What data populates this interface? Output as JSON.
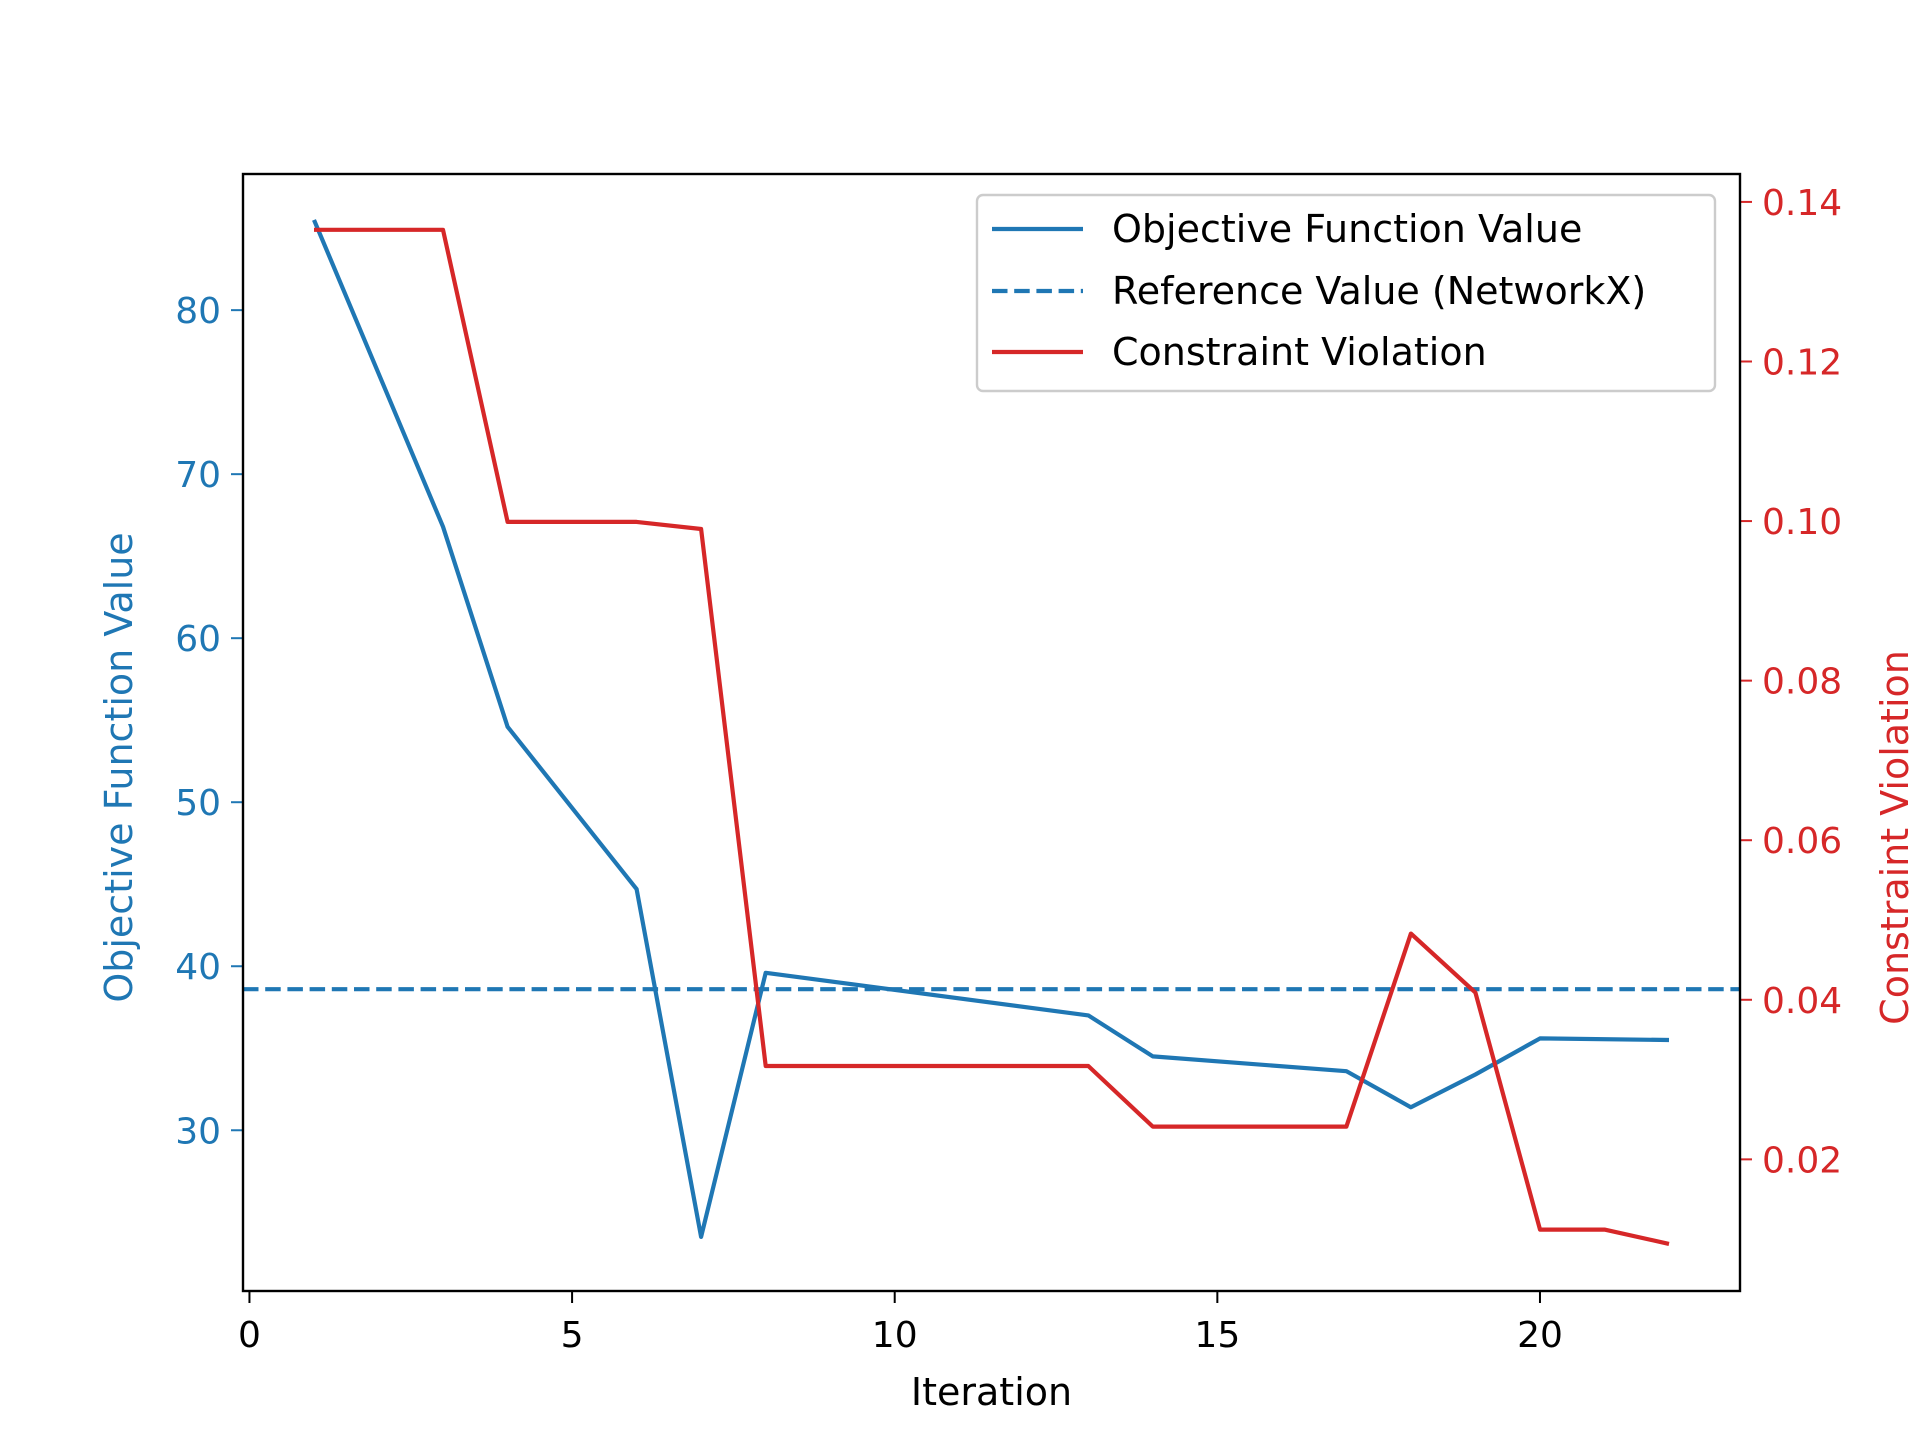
{
  "colors": {
    "objective": "#1f77b4",
    "constraint": "#d62728",
    "axis": "#000000",
    "legend_border": "#cccccc"
  },
  "chart_data": {
    "type": "line",
    "title": "",
    "xlabel": "Iteration",
    "ylabel_left": "Objective Function Value",
    "ylabel_right": "Constraint Violation",
    "xlim": [
      -0.1,
      23.1
    ],
    "ylim_left": [
      20.2,
      88.3
    ],
    "ylim_right": [
      0.0035,
      0.1435
    ],
    "x_ticks": [
      0,
      5,
      10,
      15,
      20
    ],
    "y_ticks_left": [
      30,
      40,
      50,
      60,
      70,
      80
    ],
    "y_ticks_right": [
      0.02,
      0.04,
      0.06,
      0.08,
      0.1,
      0.12,
      0.14
    ],
    "y_tick_labels_right": [
      "0.02",
      "0.04",
      "0.06",
      "0.08",
      "0.10",
      "0.12",
      "0.14"
    ],
    "grid": false,
    "legend_position": "top-right",
    "series": [
      {
        "name": "Objective Function Value",
        "axis": "left",
        "style": "solid",
        "color": "#1f77b4",
        "x": [
          1,
          3,
          4,
          6,
          7,
          8,
          13,
          14,
          17,
          18,
          19,
          20,
          22
        ],
        "y": [
          85.5,
          66.8,
          54.6,
          44.7,
          23.5,
          39.6,
          37.0,
          34.5,
          33.6,
          31.4,
          33.4,
          35.6,
          35.5
        ]
      },
      {
        "name": "Reference Value (NetworkX)",
        "axis": "left",
        "style": "dashed",
        "color": "#1f77b4",
        "x": [
          -0.1,
          23.1
        ],
        "y": [
          38.6,
          38.6
        ]
      },
      {
        "name": "Constraint Violation",
        "axis": "right",
        "style": "solid",
        "color": "#d62728",
        "x": [
          1,
          3,
          4,
          6,
          7,
          8,
          13,
          14,
          17,
          18,
          19,
          20,
          21,
          22
        ],
        "y": [
          0.1365,
          0.1365,
          0.0999,
          0.0999,
          0.099,
          0.0317,
          0.0317,
          0.0241,
          0.0241,
          0.0483,
          0.0409,
          0.0112,
          0.0112,
          0.0094
        ]
      }
    ]
  }
}
